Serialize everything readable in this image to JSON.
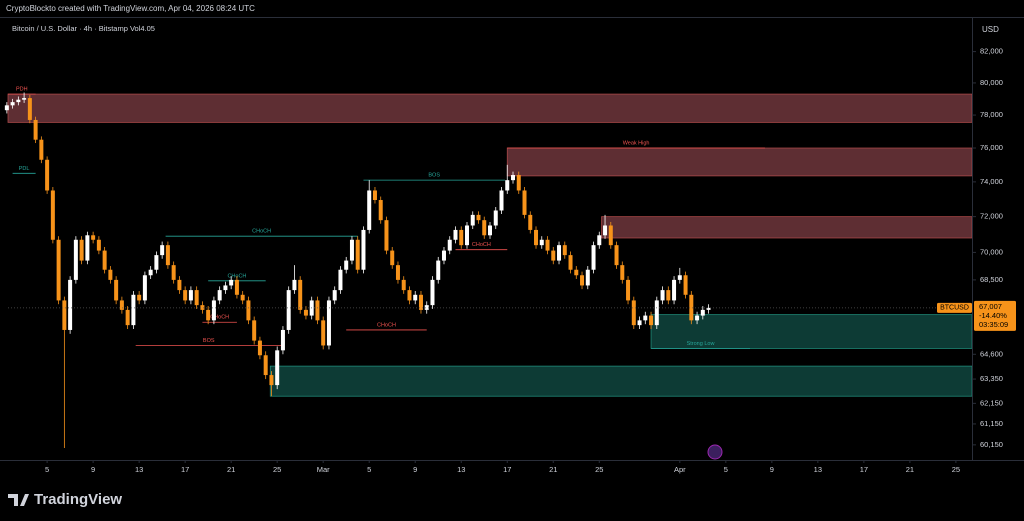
{
  "chart_data": {
    "type": "candlestick",
    "watermark": "CryptoBlockto created with TradingView.com, Apr 04, 2026 08:24 UTC",
    "title": "Bitcoin / U.S. Dollar · 4h · Bitstamp  Vol4.05",
    "currency": "USD",
    "brand": "TradingView",
    "log_scale": true,
    "grid": false,
    "up_color": "#ffffff",
    "down_color": "#f7931a",
    "xlim": [
      1.6,
      85.4
    ],
    "ylim": [
      59530,
      84200
    ],
    "xticks": [
      5,
      9,
      13,
      17,
      21,
      25,
      {
        "value": 29,
        "label": "Mar"
      },
      {
        "value": 33,
        "label": "5"
      },
      {
        "value": 37,
        "label": "9"
      },
      {
        "value": 41,
        "label": "13"
      },
      {
        "value": 45,
        "label": "17"
      },
      {
        "value": 49,
        "label": "21"
      },
      {
        "value": 53,
        "label": "25"
      },
      {
        "value": 60,
        "label": "Apr"
      },
      {
        "value": 64,
        "label": "5"
      },
      {
        "value": 68,
        "label": "9"
      },
      {
        "value": 72,
        "label": "13"
      },
      {
        "value": 76,
        "label": "17"
      },
      {
        "value": 80,
        "label": "21"
      },
      {
        "value": 84,
        "label": "25"
      }
    ],
    "yticks": [
      {
        "value": 82000,
        "label": "82,000"
      },
      {
        "value": 80000,
        "label": "80,000"
      },
      {
        "value": 78000,
        "label": "78,000"
      },
      {
        "value": 76000,
        "label": "76,000"
      },
      {
        "value": 74000,
        "label": "74,000"
      },
      {
        "value": 72000,
        "label": "72,000"
      },
      {
        "value": 70000,
        "label": "70,000"
      },
      {
        "value": 68500,
        "label": "68,500"
      },
      {
        "value": 64600,
        "label": "64,600"
      },
      {
        "value": 63350,
        "label": "63,350"
      },
      {
        "value": 62150,
        "label": "62,150"
      },
      {
        "value": 61150,
        "label": "61,150"
      },
      {
        "value": 60150,
        "label": "60,150"
      }
    ],
    "x": [
      1.5,
      2,
      2.5,
      3,
      3.5,
      4,
      4.5,
      5,
      5.5,
      6,
      6.5,
      7,
      7.5,
      8,
      8.5,
      9,
      9.5,
      10,
      10.5,
      11,
      11.5,
      12,
      12.5,
      13,
      13.5,
      14,
      14.5,
      15,
      15.5,
      16,
      16.5,
      17,
      17.5,
      18,
      18.5,
      19,
      19.5,
      20,
      20.5,
      21,
      21.5,
      22,
      22.5,
      23,
      23.5,
      24,
      24.5,
      25,
      25.5,
      26,
      26.5,
      27,
      27.5,
      28,
      28.5,
      29,
      29.5,
      30,
      30.5,
      31,
      31.5,
      32,
      32.5,
      33,
      33.5,
      34,
      34.5,
      35,
      35.5,
      36,
      36.5,
      37,
      37.5,
      38,
      38.5,
      39,
      39.5,
      40,
      40.5,
      41,
      41.5,
      42,
      42.5,
      43,
      43.5,
      44,
      44.5,
      45,
      45.5,
      46,
      46.5,
      47,
      47.5,
      48,
      48.5,
      49,
      49.5,
      50,
      50.5,
      51,
      51.5,
      52,
      52.5,
      53,
      53.5,
      54,
      54.5,
      55,
      55.5,
      56,
      56.5,
      57,
      57.5,
      58,
      58.5,
      59,
      59.5,
      60,
      60.5,
      61,
      61.5,
      62,
      62.5
    ],
    "open": [
      78300,
      78600,
      78800,
      78950,
      79050,
      77700,
      76500,
      75300,
      73500,
      70700,
      67400,
      65850,
      68500,
      70700,
      69550,
      70950,
      70700,
      70100,
      69050,
      68500,
      67400,
      66900,
      66100,
      67700,
      67400,
      68750,
      69050,
      69850,
      70400,
      69300,
      68500,
      67950,
      67400,
      67950,
      67150,
      66900,
      66350,
      67400,
      67950,
      68200,
      68500,
      67700,
      67400,
      66350,
      65300,
      64550,
      63550,
      63050,
      64800,
      65850,
      67950,
      68500,
      66900,
      66600,
      67400,
      66350,
      65050,
      67400,
      67950,
      69050,
      69550,
      70700,
      69050,
      71250,
      73500,
      72950,
      71800,
      70100,
      69300,
      68500,
      67950,
      67400,
      67700,
      66900,
      67150,
      68500,
      69550,
      70100,
      70700,
      71250,
      70400,
      71500,
      72100,
      71800,
      70950,
      71500,
      72350,
      73500,
      74100,
      74400,
      73500,
      72100,
      71250,
      70400,
      70700,
      70100,
      69550,
      70400,
      69850,
      69050,
      68750,
      68200,
      69050,
      70400,
      70950,
      71500,
      70400,
      69300,
      68500,
      67400,
      66100,
      66350,
      66600,
      66100,
      67400,
      67950,
      67400,
      68500,
      68750,
      67700,
      66350,
      66600,
      66900
    ],
    "high": [
      78800,
      79000,
      79150,
      79400,
      79250,
      77900,
      76700,
      75500,
      73700,
      70900,
      67600,
      68700,
      70900,
      70900,
      71150,
      71150,
      70900,
      70300,
      69250,
      68700,
      67600,
      67100,
      67900,
      67900,
      68950,
      69250,
      70050,
      70600,
      70600,
      69500,
      68700,
      68150,
      68150,
      68150,
      67350,
      67100,
      67600,
      68150,
      68400,
      68700,
      68700,
      67900,
      67600,
      66550,
      65500,
      64750,
      63750,
      65000,
      66050,
      68150,
      69300,
      68700,
      67100,
      67600,
      67600,
      66550,
      67600,
      68150,
      69250,
      69750,
      70900,
      70900,
      71450,
      74100,
      73700,
      73150,
      72000,
      70300,
      69500,
      68700,
      68150,
      67900,
      67900,
      67350,
      68700,
      69750,
      70300,
      70900,
      71450,
      71450,
      71700,
      72300,
      72300,
      72000,
      71700,
      72550,
      73700,
      75000,
      74600,
      74600,
      73700,
      72300,
      71450,
      70900,
      70900,
      70300,
      70600,
      70600,
      70050,
      69250,
      68950,
      69250,
      70600,
      71150,
      72100,
      71700,
      70600,
      69500,
      68700,
      67600,
      66550,
      66800,
      66800,
      67600,
      68150,
      68150,
      68700,
      69150,
      68950,
      67900,
      66800,
      67100,
      67200
    ],
    "low": [
      78100,
      78400,
      78600,
      78750,
      77500,
      76300,
      75100,
      73300,
      70500,
      67200,
      60000,
      65650,
      68300,
      69350,
      69350,
      70500,
      69900,
      68850,
      68300,
      67200,
      66700,
      65900,
      65900,
      67200,
      67200,
      68550,
      68850,
      69650,
      69100,
      68300,
      67750,
      67200,
      67200,
      66950,
      66700,
      66150,
      66150,
      67200,
      67750,
      68000,
      67500,
      67200,
      66150,
      65100,
      64350,
      63350,
      62500,
      62850,
      64600,
      65650,
      67750,
      66700,
      66400,
      66400,
      66150,
      64850,
      64850,
      67200,
      67750,
      68850,
      69350,
      68850,
      68850,
      71050,
      72750,
      71600,
      69900,
      69100,
      68300,
      67750,
      67200,
      67200,
      66700,
      66700,
      66950,
      68300,
      69350,
      69900,
      70500,
      70200,
      70200,
      71300,
      71600,
      70750,
      70750,
      71300,
      72150,
      73300,
      73900,
      73300,
      71900,
      71050,
      70200,
      70200,
      69900,
      69350,
      69350,
      69650,
      68850,
      68550,
      68000,
      68000,
      68850,
      70200,
      70750,
      70200,
      69100,
      68300,
      67200,
      65900,
      65900,
      66150,
      65900,
      65900,
      67200,
      67200,
      67200,
      68300,
      67500,
      66150,
      66150,
      66400,
      66700
    ],
    "close": [
      78600,
      78800,
      78950,
      79050,
      77700,
      76500,
      75300,
      73500,
      70700,
      67400,
      65850,
      68500,
      70700,
      69550,
      70950,
      70700,
      70100,
      69050,
      68500,
      67400,
      66900,
      66100,
      67700,
      67400,
      68750,
      69050,
      69850,
      70400,
      69300,
      68500,
      67950,
      67400,
      67950,
      67150,
      66900,
      66350,
      67400,
      67950,
      68200,
      68500,
      67700,
      67400,
      66350,
      65300,
      64550,
      63550,
      63050,
      64800,
      65850,
      67950,
      68500,
      66900,
      66600,
      67400,
      66350,
      65050,
      67400,
      67950,
      69050,
      69550,
      70700,
      69050,
      71250,
      73500,
      72950,
      71800,
      70100,
      69300,
      68500,
      67950,
      67400,
      67700,
      66900,
      67150,
      68500,
      69550,
      70100,
      70700,
      71250,
      70400,
      71500,
      72100,
      71800,
      70950,
      71500,
      72350,
      73500,
      74100,
      74400,
      73500,
      72100,
      71250,
      70400,
      70700,
      70100,
      69550,
      70400,
      69850,
      69050,
      68750,
      68200,
      69050,
      70400,
      70950,
      71500,
      70400,
      69300,
      68500,
      67400,
      66100,
      66350,
      66600,
      66100,
      67400,
      67950,
      67400,
      68500,
      68750,
      67700,
      66350,
      66600,
      66900,
      67007
    ],
    "zones": [
      {
        "x": [
          1.6,
          85.4
        ],
        "y": [
          77550,
          79300
        ],
        "color": "#5e2e33",
        "border": "#a84848"
      },
      {
        "x": [
          45,
          85.4
        ],
        "y": [
          74350,
          76000
        ],
        "color": "#5e2e33",
        "border": "#a84848"
      },
      {
        "x": [
          53.2,
          85.4
        ],
        "y": [
          70800,
          72000
        ],
        "color": "#5e2e33",
        "border": "#a84848"
      },
      {
        "x": [
          57.5,
          85.4
        ],
        "y": [
          64900,
          66650
        ],
        "color": "#0d3b35",
        "border": "#1f8a78"
      },
      {
        "x": [
          24.4,
          85.4
        ],
        "y": [
          62500,
          64000
        ],
        "color": "#0d3b35",
        "border": "#1f8a78"
      }
    ],
    "lines": [
      {
        "label": "CHoCH",
        "x": [
          15.3,
          32
        ],
        "price": 70900,
        "color": "#26a69a"
      },
      {
        "label": "BOS",
        "x": [
          32.5,
          44.8
        ],
        "price": 74100,
        "color": "#26a69a"
      },
      {
        "label": "BOS",
        "x": [
          12.7,
          25.4
        ],
        "price": 65050,
        "color": "#ef5350"
      },
      {
        "label": "Weak High",
        "x": [
          45,
          67.4
        ],
        "price": 76000,
        "color": "#ef5350"
      },
      {
        "label": "Strong Low",
        "x": [
          57.5,
          66.1
        ],
        "price": 64900,
        "color": "#26a69a"
      },
      {
        "label": "CHoCH",
        "x": [
          18.5,
          21.5
        ],
        "price": 66250,
        "color": "#ef5350"
      },
      {
        "label": "CHoCH",
        "x": [
          19,
          24
        ],
        "price": 68450,
        "color": "#26a69a"
      },
      {
        "label": "CHoCH",
        "x": [
          31,
          38
        ],
        "price": 65850,
        "color": "#ef5350"
      },
      {
        "label": "CHoCH",
        "x": [
          40.5,
          45
        ],
        "price": 70150,
        "color": "#ef5350"
      },
      {
        "label": "PDH",
        "x": [
          1.6,
          4
        ],
        "price": 79300,
        "color": "#ef5350"
      },
      {
        "label": "PDL",
        "x": [
          2,
          4
        ],
        "price": 74500,
        "color": "#26a69a"
      }
    ],
    "last_price": {
      "symbol": "BTCUSD",
      "value": 67007,
      "value_label": "67,007",
      "change": "-14.40%",
      "countdown": "03:35:09",
      "color": "#f7931a"
    }
  }
}
